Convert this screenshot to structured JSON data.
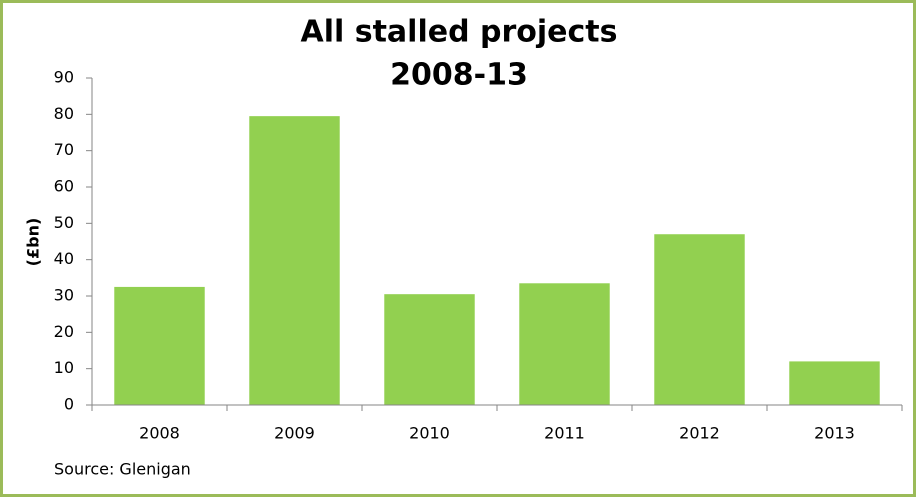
{
  "chart_data": {
    "type": "bar",
    "title": [
      "All stalled projects",
      "2008-13"
    ],
    "y_label": "(£bn)",
    "source": "Source: Glenigan",
    "categories": [
      "2008",
      "2009",
      "2010",
      "2011",
      "2012",
      "2013"
    ],
    "values": [
      32.5,
      79.5,
      30.5,
      33.5,
      47,
      12
    ],
    "color": "#92d050",
    "ylim": [
      0,
      90
    ],
    "yticks": [
      0,
      10,
      20,
      30,
      40,
      50,
      60,
      70,
      80,
      90
    ],
    "grid": false
  }
}
